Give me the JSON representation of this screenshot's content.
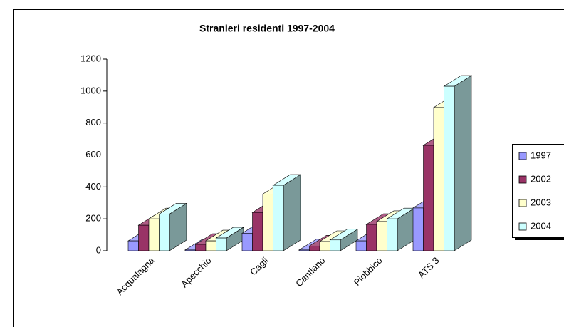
{
  "chart_data": {
    "type": "bar3d",
    "title": "Stranieri residenti 1997-2004",
    "categories": [
      "Acqualagna",
      "Apecchio",
      "Cagli",
      "Cantiano",
      "Piobbico",
      "ATS 3"
    ],
    "series": [
      {
        "name": "1997",
        "color": "#9999ff",
        "values": [
          62,
          5,
          110,
          5,
          62,
          268
        ]
      },
      {
        "name": "2002",
        "color": "#993366",
        "values": [
          160,
          40,
          240,
          30,
          165,
          660
        ]
      },
      {
        "name": "2003",
        "color": "#ffffcc",
        "values": [
          200,
          62,
          355,
          58,
          183,
          897
        ]
      },
      {
        "name": "2004",
        "color": "#ccffff",
        "values": [
          230,
          80,
          410,
          68,
          200,
          1030
        ]
      }
    ],
    "ylim": [
      0,
      1200
    ],
    "yticks": [
      0,
      200,
      400,
      600,
      800,
      1000,
      1200
    ],
    "legend": "right"
  }
}
